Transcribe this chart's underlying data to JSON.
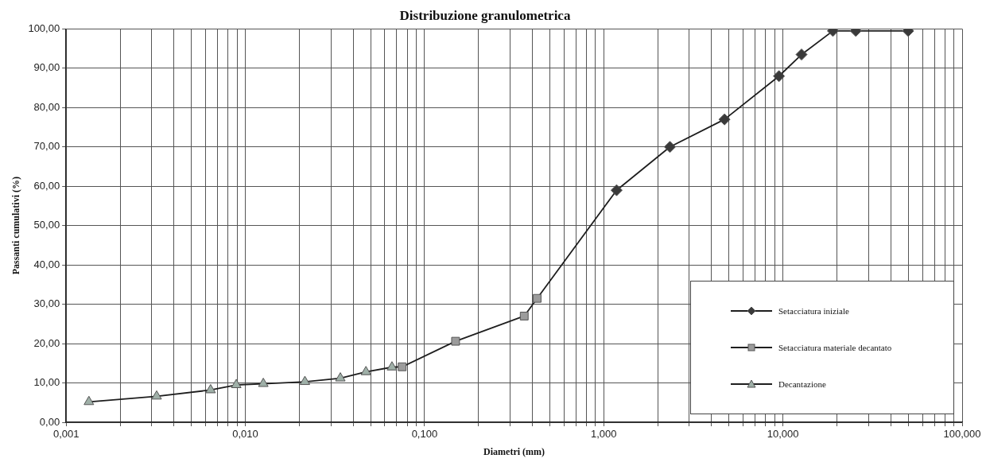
{
  "chart_data": {
    "type": "line",
    "title": "Distribuzione granulometrica",
    "xlabel": "Diametri (mm)",
    "ylabel": "Passanti cumulativi (%)",
    "log": "x",
    "grid": true,
    "legend": "bottom right",
    "line_style": "solid",
    "xlim": [
      0.001,
      100
    ],
    "ylim": [
      0,
      100
    ],
    "xticks": [
      {
        "value": 0.001,
        "label": "0,001"
      },
      {
        "value": 0.002,
        "label": null
      },
      {
        "value": 0.003,
        "label": null
      },
      {
        "value": 0.004,
        "label": null
      },
      {
        "value": 0.005,
        "label": null
      },
      {
        "value": 0.006,
        "label": null
      },
      {
        "value": 0.007,
        "label": null
      },
      {
        "value": 0.008,
        "label": null
      },
      {
        "value": 0.009,
        "label": null
      },
      {
        "value": 0.01,
        "label": "0,010"
      },
      {
        "value": 0.02,
        "label": null
      },
      {
        "value": 0.03,
        "label": null
      },
      {
        "value": 0.04,
        "label": null
      },
      {
        "value": 0.05,
        "label": null
      },
      {
        "value": 0.06,
        "label": null
      },
      {
        "value": 0.07,
        "label": null
      },
      {
        "value": 0.08,
        "label": null
      },
      {
        "value": 0.09,
        "label": null
      },
      {
        "value": 0.1,
        "label": "0,100"
      },
      {
        "value": 0.2,
        "label": null
      },
      {
        "value": 0.3,
        "label": null
      },
      {
        "value": 0.4,
        "label": null
      },
      {
        "value": 0.5,
        "label": null
      },
      {
        "value": 0.6,
        "label": null
      },
      {
        "value": 0.7,
        "label": null
      },
      {
        "value": 0.8,
        "label": null
      },
      {
        "value": 0.9,
        "label": null
      },
      {
        "value": 1,
        "label": "1,000"
      },
      {
        "value": 2,
        "label": null
      },
      {
        "value": 3,
        "label": null
      },
      {
        "value": 4,
        "label": null
      },
      {
        "value": 5,
        "label": null
      },
      {
        "value": 6,
        "label": null
      },
      {
        "value": 7,
        "label": null
      },
      {
        "value": 8,
        "label": null
      },
      {
        "value": 9,
        "label": null
      },
      {
        "value": 10,
        "label": "10,000"
      },
      {
        "value": 20,
        "label": null
      },
      {
        "value": 30,
        "label": null
      },
      {
        "value": 40,
        "label": null
      },
      {
        "value": 50,
        "label": null
      },
      {
        "value": 60,
        "label": null
      },
      {
        "value": 70,
        "label": null
      },
      {
        "value": 80,
        "label": null
      },
      {
        "value": 90,
        "label": null
      },
      {
        "value": 100,
        "label": "100,000"
      }
    ],
    "yticks": [
      {
        "value": 0,
        "label": "0,00"
      },
      {
        "value": 10,
        "label": "10,00"
      },
      {
        "value": 20,
        "label": "20,00"
      },
      {
        "value": 30,
        "label": "30,00"
      },
      {
        "value": 40,
        "label": "40,00"
      },
      {
        "value": 50,
        "label": "50,00"
      },
      {
        "value": 60,
        "label": "60,00"
      },
      {
        "value": 70,
        "label": "70,00"
      },
      {
        "value": 80,
        "label": "80,00"
      },
      {
        "value": 90,
        "label": "90,00"
      },
      {
        "value": 100,
        "label": "100,00"
      }
    ],
    "series": [
      {
        "name": "Setacciatura iniziale",
        "color": "#3a3a3a",
        "marker": "diamond",
        "x": [
          1.18,
          2.34,
          4.72,
          9.5,
          12.7,
          19,
          25.5,
          50
        ],
        "values": [
          59,
          70,
          77,
          88,
          93.5,
          99.5,
          99.5,
          99.5
        ]
      },
      {
        "name": "Setacciatura materiale decantato",
        "color": "#9c9c9c",
        "marker": "square",
        "x": [
          0.075,
          0.149,
          0.36,
          0.425,
          1.18
        ],
        "values": [
          14.1,
          20.6,
          27,
          31.5,
          59
        ]
      },
      {
        "name": "Decantazione",
        "color": "#9fb0a8",
        "marker": "triangle",
        "x": [
          0.00134,
          0.0032,
          0.0064,
          0.0089,
          0.0126,
          0.0215,
          0.0339,
          0.0471,
          0.0658,
          0.075
        ],
        "values": [
          5.2,
          6.6,
          8.2,
          9.5,
          9.8,
          10.3,
          11.2,
          12.8,
          14,
          14.1
        ]
      }
    ]
  }
}
